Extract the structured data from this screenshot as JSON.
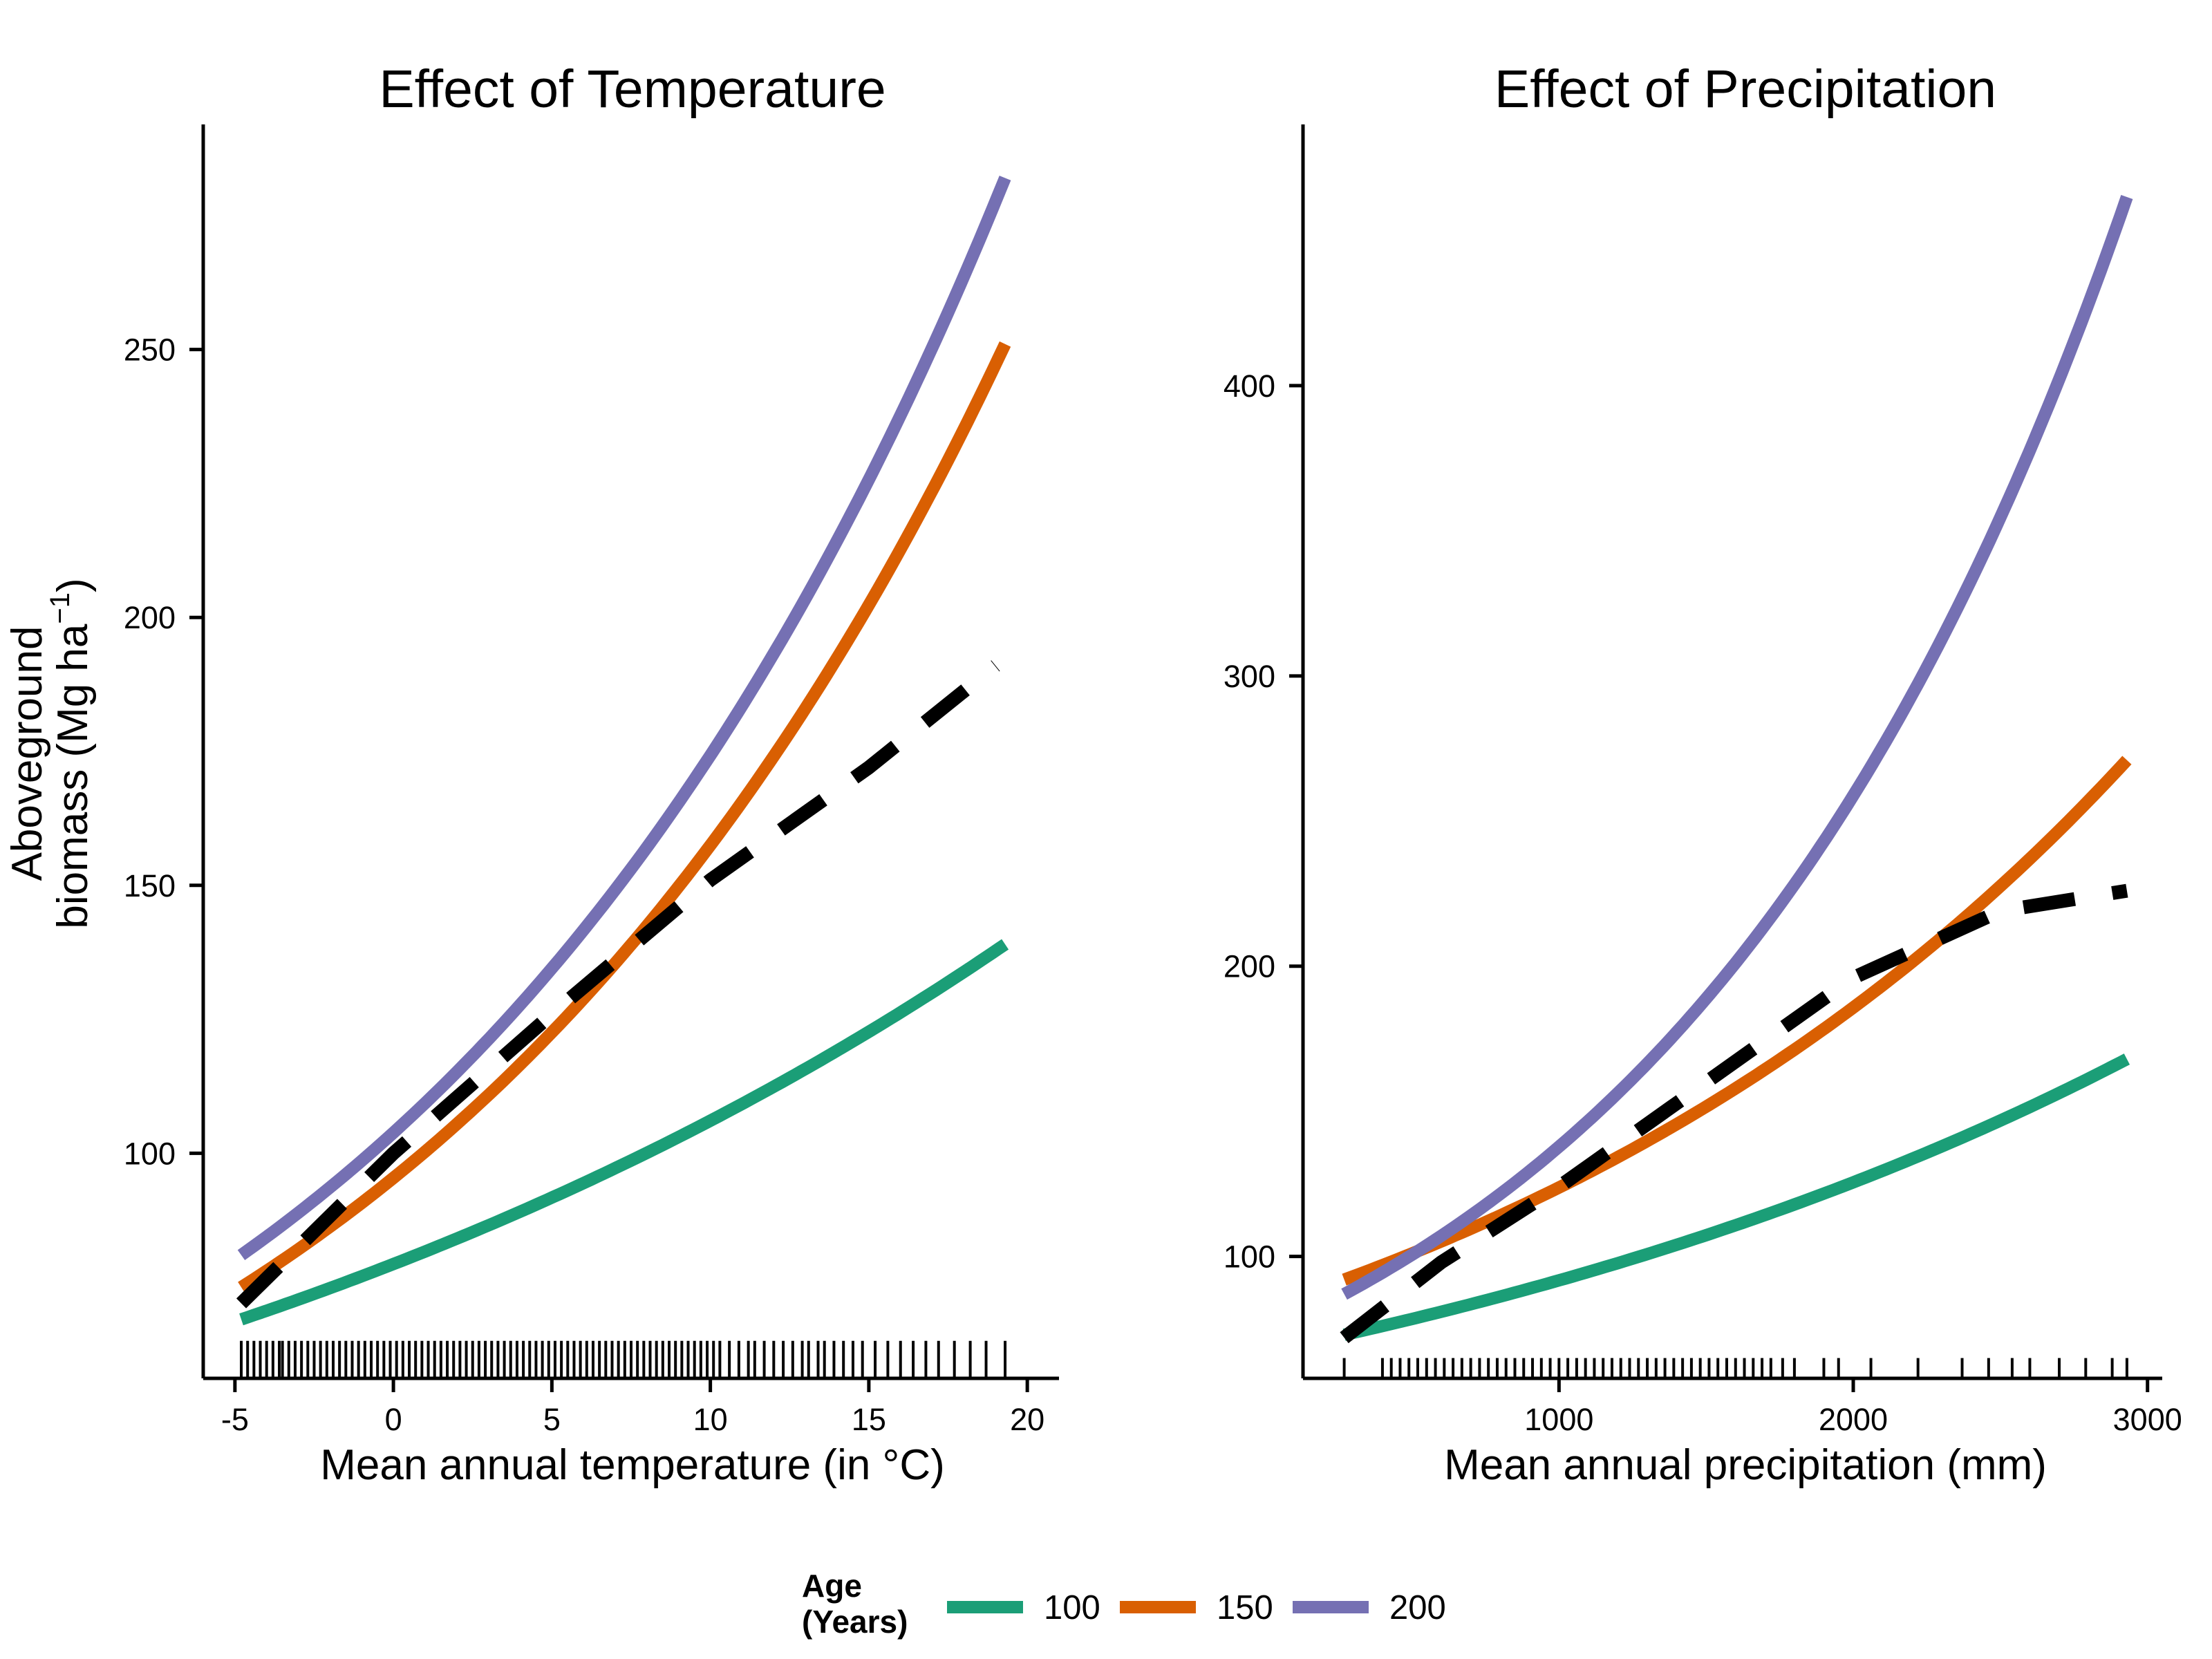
{
  "chart_data": [
    {
      "type": "line",
      "title": "Effect of Temperature",
      "xlabel": "Mean annual temperature (in °C)",
      "ylabel_line1": "Aboveground",
      "ylabel_line2_main": "biomass (Mg  ha",
      "ylabel_line2_sup": "−1",
      "ylabel_line2_end": ")",
      "xlim": [
        -6,
        21
      ],
      "ylim": [
        58,
        292
      ],
      "x_ticks": [
        -5,
        0,
        5,
        10,
        15,
        20
      ],
      "x_tick_labels": [
        "-5",
        "0",
        "5",
        "10",
        "15",
        "20"
      ],
      "y_ticks": [
        100,
        150,
        200,
        250
      ],
      "y_tick_labels": [
        "100",
        "150",
        "200",
        "250"
      ],
      "x_range": [
        -4.8,
        19.3
      ],
      "series": [
        {
          "name": "100",
          "color": "#1b9e77",
          "style": "solid",
          "y_start": 69,
          "y_end": 139
        },
        {
          "name": "150",
          "color": "#d95f02",
          "style": "solid",
          "y_start": 75,
          "y_end": 251
        },
        {
          "name": "200",
          "color": "#7570b3",
          "style": "solid",
          "y_start": 81,
          "y_end": 282
        }
      ],
      "dashed_line": {
        "color": "#000000",
        "points": [
          [
            -4.8,
            72
          ],
          [
            0,
            100
          ],
          [
            5,
            126
          ],
          [
            10,
            151
          ],
          [
            15,
            172
          ],
          [
            19,
            191
          ]
        ]
      },
      "rug": {
        "y_base": 58,
        "y_top": 65,
        "values": [
          -4.8,
          -4.6,
          -4.4,
          -4.2,
          -4.0,
          -3.8,
          -3.6,
          -3.5,
          -3.3,
          -3.1,
          -2.9,
          -2.7,
          -2.5,
          -2.3,
          -2.1,
          -1.9,
          -1.7,
          -1.5,
          -1.3,
          -1.1,
          -0.9,
          -0.7,
          -0.5,
          -0.3,
          -0.1,
          0.1,
          0.3,
          0.5,
          0.7,
          0.9,
          1.1,
          1.3,
          1.5,
          1.7,
          1.9,
          2.1,
          2.3,
          2.5,
          2.7,
          2.9,
          3.1,
          3.3,
          3.5,
          3.7,
          3.9,
          4.1,
          4.3,
          4.5,
          4.7,
          4.9,
          5.1,
          5.3,
          5.5,
          5.7,
          5.9,
          6.1,
          6.3,
          6.5,
          6.7,
          6.9,
          7.1,
          7.3,
          7.5,
          7.7,
          7.9,
          8.1,
          8.3,
          8.5,
          8.7,
          8.9,
          9.1,
          9.3,
          9.5,
          9.7,
          9.9,
          10.1,
          10.3,
          10.6,
          10.9,
          11.2,
          11.4,
          11.7,
          12.0,
          12.3,
          12.6,
          12.9,
          13.1,
          13.4,
          13.6,
          13.9,
          14.2,
          14.5,
          14.8,
          15.2,
          15.6,
          16.0,
          16.4,
          16.8,
          17.2,
          17.7,
          18.2,
          18.7,
          19.3
        ]
      }
    },
    {
      "type": "line",
      "title": "Effect of Precipitation",
      "xlabel": "Mean annual precipitation (mm)",
      "xlim": [
        130,
        3050
      ],
      "ylim": [
        58,
        490
      ],
      "x_ticks": [
        1000,
        2000,
        3000
      ],
      "x_tick_labels": [
        "1000",
        "2000",
        "3000"
      ],
      "y_ticks": [
        100,
        200,
        300,
        400
      ],
      "y_tick_labels": [
        "100",
        "200",
        "300",
        "400"
      ],
      "x_range": [
        270,
        2930
      ],
      "series": [
        {
          "name": "100",
          "color": "#1b9e77",
          "style": "solid",
          "y_start": 73,
          "y_end": 168
        },
        {
          "name": "150",
          "color": "#d95f02",
          "style": "solid",
          "y_start": 92,
          "y_end": 271
        },
        {
          "name": "200",
          "color": "#7570b3",
          "style": "solid",
          "y_start": 87,
          "y_end": 465
        }
      ],
      "dashed_line": {
        "color": "#000000",
        "points": [
          [
            270,
            72
          ],
          [
            600,
            98
          ],
          [
            1000,
            124
          ],
          [
            1500,
            160
          ],
          [
            2000,
            196
          ],
          [
            2500,
            219
          ],
          [
            2930,
            226
          ]
        ]
      },
      "rug": {
        "y_base": 58,
        "y_top": 65,
        "values": [
          270,
          400,
          430,
          460,
          490,
          520,
          550,
          580,
          610,
          640,
          670,
          700,
          730,
          760,
          790,
          820,
          850,
          880,
          910,
          940,
          970,
          1000,
          1030,
          1060,
          1090,
          1120,
          1150,
          1180,
          1210,
          1240,
          1270,
          1300,
          1330,
          1360,
          1390,
          1420,
          1450,
          1480,
          1510,
          1540,
          1570,
          1600,
          1630,
          1660,
          1690,
          1720,
          1760,
          1800,
          1900,
          1950,
          2060,
          2220,
          2370,
          2460,
          2540,
          2600,
          2700,
          2790,
          2880,
          2930
        ]
      }
    }
  ],
  "legend": {
    "title_line1": "Age",
    "title_line2": "(Years)",
    "items": [
      {
        "label": "100",
        "color": "#1b9e77"
      },
      {
        "label": "150",
        "color": "#d95f02"
      },
      {
        "label": "200",
        "color": "#7570b3"
      }
    ],
    "placement": "bottom"
  }
}
